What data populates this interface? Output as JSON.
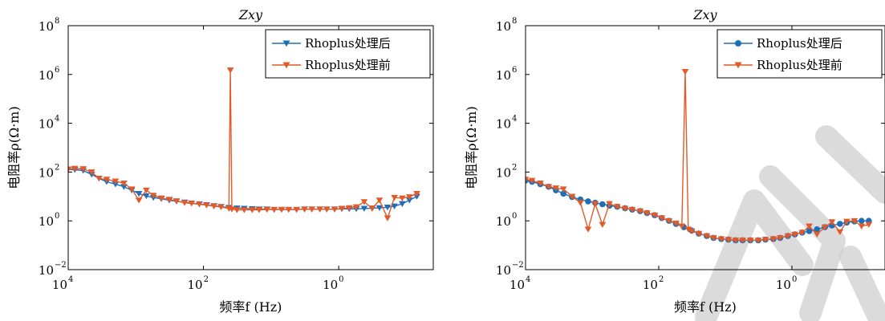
{
  "colors": {
    "after": "#1f6fb8",
    "before": "#e15a2a",
    "axis": "#000000",
    "watermark": "#cfcfcf"
  },
  "chart_data": [
    {
      "type": "line",
      "title": "Zxy",
      "xlabel": "频率f (Hz)",
      "ylabel": "电阻率ρ(Ω·m)",
      "x_scale": "log",
      "x_reversed": true,
      "y_scale": "log",
      "xlim": [
        10000,
        0.04
      ],
      "ylim": [
        0.01,
        100000000
      ],
      "x_ticks": [
        {
          "value": 10000,
          "base": "10",
          "exp": "4"
        },
        {
          "value": 100,
          "base": "10",
          "exp": "2"
        },
        {
          "value": 1,
          "base": "10",
          "exp": "0"
        }
      ],
      "y_ticks": [
        {
          "value": 0.01,
          "base": "10",
          "exp": "−2"
        },
        {
          "value": 1,
          "base": "10",
          "exp": "0"
        },
        {
          "value": 100,
          "base": "10",
          "exp": "2"
        },
        {
          "value": 10000,
          "base": "10",
          "exp": "4"
        },
        {
          "value": 1000000,
          "base": "10",
          "exp": "6"
        },
        {
          "value": 100000000,
          "base": "10",
          "exp": "8"
        }
      ],
      "grid": false,
      "legend_position": "top-right",
      "series": [
        {
          "name": "Rhoplus处理后",
          "marker": "triangle-down",
          "color": "#1f6fb8",
          "x": [
            10000,
            8000,
            6000,
            4500,
            3500,
            2700,
            2000,
            1500,
            1150,
            900,
            700,
            550,
            420,
            320,
            250,
            190,
            150,
            115,
            90,
            70,
            55,
            42,
            32,
            25,
            19,
            15,
            11.5,
            9,
            7,
            5.5,
            4.2,
            3.2,
            2.5,
            1.9,
            1.5,
            1.15,
            0.9,
            0.7,
            0.55,
            0.42,
            0.32,
            0.25,
            0.19,
            0.15,
            0.115,
            0.09,
            0.07
          ],
          "y": [
            130,
            125,
            115,
            80,
            55,
            40,
            32,
            25,
            18,
            13,
            10.5,
            9,
            8,
            7,
            6.3,
            5.8,
            5.3,
            4.9,
            4.5,
            4.1,
            3.8,
            3.5,
            3.3,
            3.2,
            3.1,
            3.0,
            3.0,
            2.9,
            2.9,
            2.9,
            2.9,
            3.0,
            3.0,
            3.0,
            3.0,
            3.0,
            3.1,
            3.1,
            3.1,
            3.2,
            3.3,
            3.4,
            3.6,
            4.0,
            5.0,
            7.0,
            10.0
          ]
        },
        {
          "name": "Rhoplus处理前",
          "marker": "triangle-down",
          "color": "#e15a2a",
          "x": [
            10000,
            8000,
            6000,
            4500,
            3500,
            2700,
            2000,
            1500,
            1150,
            900,
            700,
            550,
            420,
            320,
            250,
            190,
            150,
            115,
            90,
            70,
            55,
            42,
            40,
            38,
            32,
            25,
            19,
            15,
            11.5,
            9,
            7,
            5.5,
            4.2,
            3.2,
            2.5,
            1.9,
            1.5,
            1.15,
            0.9,
            0.7,
            0.55,
            0.42,
            0.32,
            0.25,
            0.19,
            0.15,
            0.115,
            0.09,
            0.07
          ],
          "y": [
            130,
            140,
            135,
            100,
            55,
            50,
            42,
            35,
            20,
            7,
            18,
            11,
            8.5,
            7.5,
            6.5,
            5.5,
            5.2,
            4.8,
            4.4,
            4.0,
            3.7,
            3.2,
            1500000,
            3.0,
            2.8,
            2.8,
            2.8,
            2.8,
            2.9,
            2.9,
            2.9,
            2.9,
            2.9,
            3.0,
            3.0,
            3.0,
            3.0,
            3.0,
            3.2,
            3.4,
            3.7,
            6.0,
            3.2,
            7.0,
            1.3,
            9.0,
            8.5,
            9.5,
            13
          ]
        }
      ]
    },
    {
      "type": "line",
      "title": "Zxy",
      "xlabel": "频率f (Hz)",
      "ylabel": "电阻率ρ(Ω·m)",
      "x_scale": "log",
      "x_reversed": true,
      "y_scale": "log",
      "xlim": [
        10000,
        0.04
      ],
      "ylim": [
        0.01,
        100000000
      ],
      "x_ticks": [
        {
          "value": 10000,
          "base": "10",
          "exp": "4"
        },
        {
          "value": 100,
          "base": "10",
          "exp": "2"
        },
        {
          "value": 1,
          "base": "10",
          "exp": "0"
        }
      ],
      "y_ticks": [
        {
          "value": 0.01,
          "base": "10",
          "exp": "−2"
        },
        {
          "value": 1,
          "base": "10",
          "exp": "0"
        },
        {
          "value": 100,
          "base": "10",
          "exp": "2"
        },
        {
          "value": 10000,
          "base": "10",
          "exp": "4"
        },
        {
          "value": 1000000,
          "base": "10",
          "exp": "6"
        },
        {
          "value": 100000000,
          "base": "10",
          "exp": "8"
        }
      ],
      "grid": false,
      "legend_position": "top-right",
      "series": [
        {
          "name": "Rhoplus处理后",
          "marker": "circle",
          "color": "#1f6fb8",
          "x": [
            10000,
            8000,
            6000,
            4500,
            3500,
            2700,
            2000,
            1500,
            1150,
            900,
            700,
            550,
            420,
            320,
            250,
            190,
            150,
            115,
            90,
            70,
            55,
            42,
            32,
            25,
            19,
            15,
            11.5,
            9,
            7,
            5.5,
            4.2,
            3.2,
            2.5,
            1.9,
            1.5,
            1.15,
            0.9,
            0.7,
            0.55,
            0.42,
            0.32,
            0.25,
            0.19,
            0.15,
            0.115,
            0.09,
            0.07
          ],
          "y": [
            45,
            40,
            32,
            25,
            18,
            13,
            9.5,
            7.5,
            6.3,
            5.5,
            4.8,
            4.2,
            3.8,
            3.3,
            2.9,
            2.5,
            2.1,
            1.7,
            1.3,
            1.0,
            0.75,
            0.55,
            0.4,
            0.3,
            0.24,
            0.2,
            0.18,
            0.17,
            0.16,
            0.16,
            0.16,
            0.16,
            0.17,
            0.18,
            0.2,
            0.24,
            0.28,
            0.33,
            0.38,
            0.45,
            0.55,
            0.65,
            0.75,
            0.85,
            0.95,
            1.0,
            1.0
          ]
        },
        {
          "name": "Rhoplus处理前",
          "marker": "triangle-down",
          "color": "#e15a2a",
          "x": [
            10000,
            8000,
            6000,
            4500,
            3500,
            2700,
            2000,
            1500,
            1150,
            900,
            700,
            550,
            420,
            320,
            250,
            190,
            150,
            115,
            90,
            70,
            55,
            45,
            40,
            36,
            32,
            25,
            19,
            15,
            11.5,
            9,
            7,
            5.5,
            4.2,
            3.2,
            2.5,
            1.9,
            1.5,
            1.15,
            0.9,
            0.7,
            0.55,
            0.42,
            0.32,
            0.25,
            0.19,
            0.15,
            0.115,
            0.09,
            0.07
          ],
          "y": [
            50,
            45,
            35,
            25,
            22,
            20,
            10,
            5.5,
            0.45,
            5.0,
            0.7,
            5.0,
            3.8,
            3.2,
            2.9,
            2.5,
            2.1,
            1.7,
            1.3,
            1.0,
            0.8,
            0.6,
            1300000,
            0.45,
            0.38,
            0.3,
            0.24,
            0.2,
            0.18,
            0.17,
            0.16,
            0.16,
            0.16,
            0.16,
            0.17,
            0.18,
            0.2,
            0.24,
            0.28,
            0.33,
            0.6,
            0.28,
            0.55,
            0.9,
            0.35,
            0.95,
            1.0,
            0.6,
            0.7
          ]
        }
      ]
    }
  ]
}
